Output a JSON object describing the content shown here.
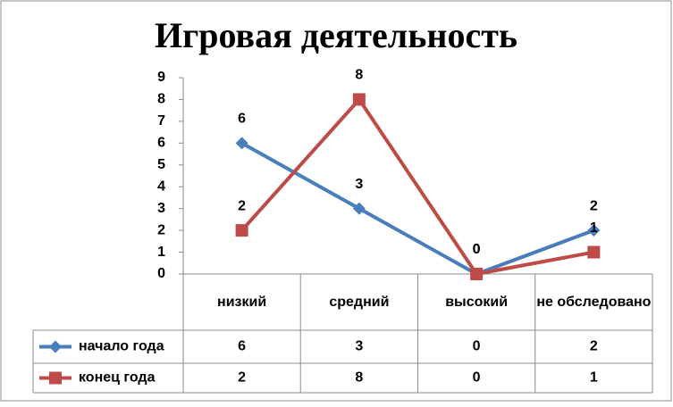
{
  "chart_data": {
    "type": "line",
    "title": "Игровая  деятельность",
    "categories": [
      "низкий",
      "средний",
      "высокий",
      "не обследовано"
    ],
    "series": [
      {
        "name": "начало года",
        "color": "#4a7ebb",
        "marker": "diamond",
        "values": [
          6,
          3,
          0,
          2
        ]
      },
      {
        "name": "конец года",
        "color": "#be4b48",
        "marker": "square",
        "values": [
          2,
          8,
          0,
          1
        ]
      }
    ],
    "ylim": [
      0,
      9
    ],
    "yticks": [
      0,
      1,
      2,
      3,
      4,
      5,
      6,
      7,
      8,
      9
    ],
    "grid": false,
    "data_table": true
  }
}
